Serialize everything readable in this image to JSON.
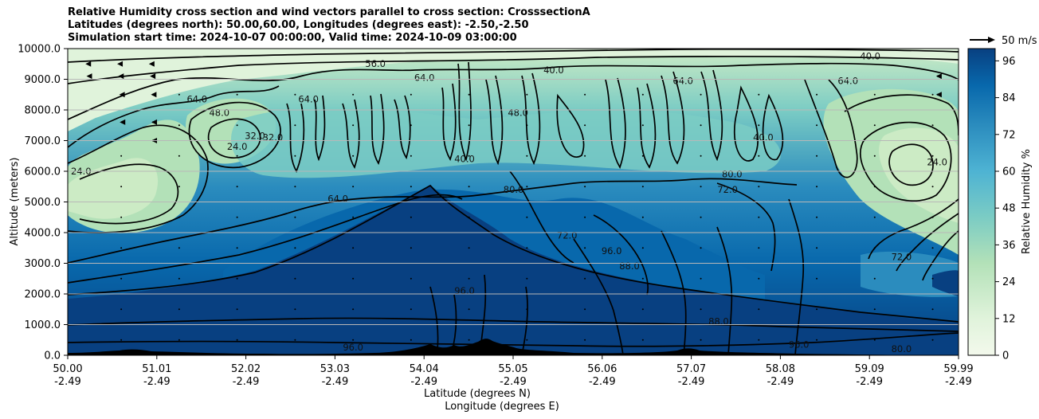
{
  "figure": {
    "title_lines": [
      "Relative Humidity cross section and wind vectors parallel to cross section: CrosssectionA",
      "Latitudes (degrees north): 50.00,60.00, Longitudes (degrees east): -2.50,-2.50",
      "Simulation start time: 2024-10-07 00:00:00, Valid time: 2024-10-09 03:00:00"
    ]
  },
  "chart_data": {
    "type": "contour",
    "title": "Relative Humidity cross section and wind vectors parallel to cross section: CrosssectionA",
    "xlabel_line1": "Latitude (degrees N)",
    "xlabel_line2": "Longitude (degrees E)",
    "ylabel": "Altitude (meters)",
    "ylim": [
      0,
      10000
    ],
    "y_ticks": [
      "0.0",
      "1000.0",
      "2000.0",
      "3000.0",
      "4000.0",
      "5000.0",
      "6000.0",
      "7000.0",
      "8000.0",
      "9000.0",
      "10000.0"
    ],
    "x_ticks": [
      {
        "lat": "50.00",
        "lon": "-2.49"
      },
      {
        "lat": "51.01",
        "lon": "-2.49"
      },
      {
        "lat": "52.02",
        "lon": "-2.49"
      },
      {
        "lat": "53.03",
        "lon": "-2.49"
      },
      {
        "lat": "54.04",
        "lon": "-2.49"
      },
      {
        "lat": "55.05",
        "lon": "-2.49"
      },
      {
        "lat": "56.06",
        "lon": "-2.49"
      },
      {
        "lat": "57.07",
        "lon": "-2.49"
      },
      {
        "lat": "58.08",
        "lon": "-2.49"
      },
      {
        "lat": "59.09",
        "lon": "-2.49"
      },
      {
        "lat": "59.99",
        "lon": "-2.49"
      }
    ],
    "colorbar": {
      "label": "Relative Humidity %",
      "range": [
        0,
        100
      ],
      "ticks": [
        "0",
        "12",
        "24",
        "36",
        "48",
        "60",
        "72",
        "84",
        "96"
      ],
      "low_color": "#f3f9ec",
      "mid_color": "#4eb3d3",
      "high_color": "#084081"
    },
    "wind_key": {
      "label": "50 m/s",
      "speed": 50
    },
    "contour_levels": [
      8,
      16,
      24,
      32,
      40,
      48,
      56,
      64,
      72,
      80,
      88,
      96
    ],
    "contour_labels": [
      {
        "text": "40.0",
        "lat": 55.45,
        "alt": 9200
      },
      {
        "text": "40.0",
        "lat": 59.0,
        "alt": 9650
      },
      {
        "text": "40.0",
        "lat": 57.8,
        "alt": 7000
      },
      {
        "text": "56.0",
        "lat": 53.45,
        "alt": 9400
      },
      {
        "text": "64.0",
        "lat": 54.0,
        "alt": 8950
      },
      {
        "text": "64.0",
        "lat": 51.45,
        "alt": 8250
      },
      {
        "text": "64.0",
        "lat": 52.7,
        "alt": 8250
      },
      {
        "text": "64.0",
        "lat": 56.9,
        "alt": 8850
      },
      {
        "text": "64.0",
        "lat": 58.75,
        "alt": 8850
      },
      {
        "text": "64.0",
        "lat": 53.03,
        "alt": 5000
      },
      {
        "text": "48.0",
        "lat": 51.7,
        "alt": 7800
      },
      {
        "text": "24.0",
        "lat": 51.9,
        "alt": 6700
      },
      {
        "text": "32.0",
        "lat": 52.1,
        "alt": 7050
      },
      {
        "text": "32.0",
        "lat": 52.3,
        "alt": 7000
      },
      {
        "text": "24.0",
        "lat": 50.15,
        "alt": 5900
      },
      {
        "text": "24.0",
        "lat": 59.75,
        "alt": 6200
      },
      {
        "text": "48.0",
        "lat": 55.05,
        "alt": 7800
      },
      {
        "text": "80.0",
        "lat": 55.0,
        "alt": 5300
      },
      {
        "text": "80.0",
        "lat": 57.45,
        "alt": 5800
      },
      {
        "text": "40.0",
        "lat": 54.45,
        "alt": 6300
      },
      {
        "text": "72.0",
        "lat": 57.4,
        "alt": 5300
      },
      {
        "text": "72.0",
        "lat": 55.6,
        "alt": 3800
      },
      {
        "text": "88.0",
        "lat": 56.3,
        "alt": 2800
      },
      {
        "text": "96.0",
        "lat": 56.1,
        "alt": 3300
      },
      {
        "text": "96.0",
        "lat": 54.45,
        "alt": 2000
      },
      {
        "text": "96.0",
        "lat": 53.2,
        "alt": 150
      },
      {
        "text": "96.0",
        "lat": 58.2,
        "alt": 250
      },
      {
        "text": "88.0",
        "lat": 57.3,
        "alt": 1000
      },
      {
        "text": "80.0",
        "lat": 59.35,
        "alt": 100
      },
      {
        "text": "72.0",
        "lat": 59.35,
        "alt": 3100
      }
    ],
    "wind_vectors": [
      {
        "lat": 50.25,
        "alt": 9500,
        "u": -9
      },
      {
        "lat": 50.6,
        "alt": 9500,
        "u": -8
      },
      {
        "lat": 50.95,
        "alt": 9500,
        "u": -7
      },
      {
        "lat": 50.25,
        "alt": 9100,
        "u": -7
      },
      {
        "lat": 50.6,
        "alt": 9100,
        "u": -6
      },
      {
        "lat": 50.95,
        "alt": 9100,
        "u": -5
      },
      {
        "lat": 50.6,
        "alt": 8500,
        "u": -4
      },
      {
        "lat": 50.95,
        "alt": 8500,
        "u": -3
      },
      {
        "lat": 50.6,
        "alt": 7600,
        "u": -3
      },
      {
        "lat": 50.95,
        "alt": 7600,
        "u": -2
      },
      {
        "lat": 50.95,
        "alt": 7000,
        "u": -2
      },
      {
        "lat": 59.75,
        "alt": 9100,
        "u": -2
      },
      {
        "lat": 59.75,
        "alt": 8500,
        "u": -2
      }
    ]
  }
}
